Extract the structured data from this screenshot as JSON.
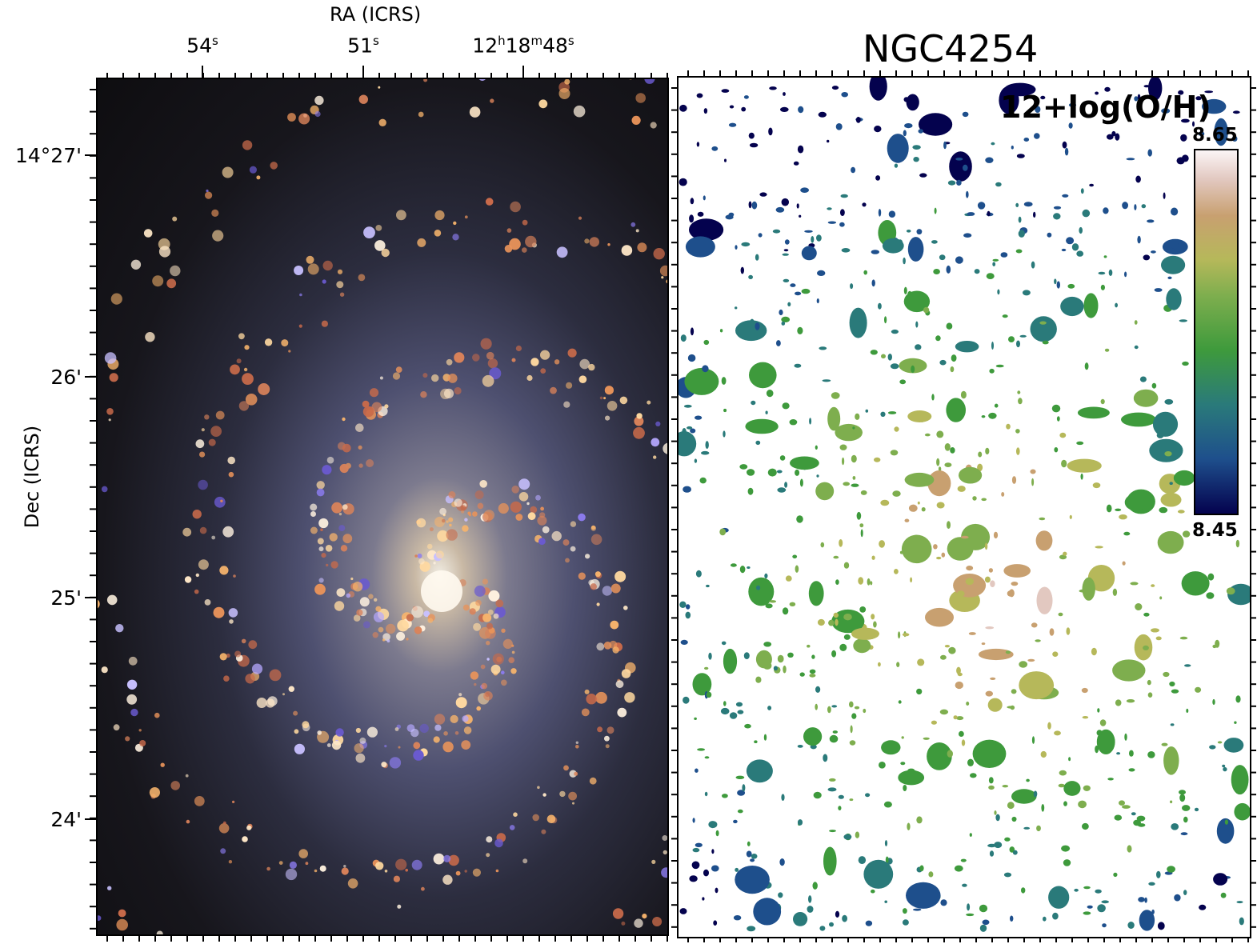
{
  "left_plot": {
    "top_axis_label": "RA (ICRS)",
    "left_axis_label": "Dec (ICRS)",
    "ra_ticks": [
      {
        "base": "54",
        "sup": "s"
      },
      {
        "base": "51",
        "sup": "s"
      },
      {
        "base": "12",
        "sup": "h",
        "base2": "18",
        "sup2": "m",
        "base3": "48",
        "sup3": "s"
      }
    ],
    "dec_ticks": [
      "14°27'",
      "26'",
      "25'",
      "24'"
    ]
  },
  "right_plot": {
    "title": "NGC4254",
    "quantity_label": "12+log(O/H)",
    "colorbar": {
      "max_label": "8.65",
      "min_label": "8.45",
      "colors": [
        "#04024e",
        "#1e4f8c",
        "#2a7a7a",
        "#3e9a3c",
        "#7eae4e",
        "#b6b85a",
        "#c8a070",
        "#e2c8c0",
        "#fbf5f6"
      ]
    }
  }
}
